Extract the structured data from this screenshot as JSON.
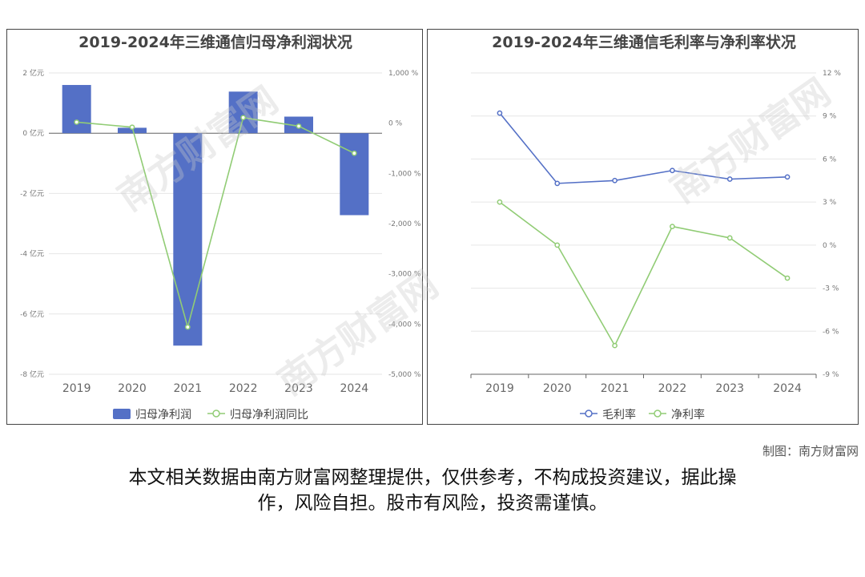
{
  "chart_data": [
    {
      "type": "bar",
      "title": "2019-2024年三维通信归母净利润状况",
      "categories": [
        "2019",
        "2020",
        "2021",
        "2022",
        "2023",
        "2024"
      ],
      "series": [
        {
          "name": "归母净利润",
          "type": "bar",
          "axis": "left",
          "values": [
            1.6,
            0.18,
            -7.05,
            1.38,
            0.55,
            -2.72
          ]
        },
        {
          "name": "归母净利润同比",
          "type": "line",
          "axis": "right",
          "values": [
            20,
            -80,
            -4060,
            110,
            -60,
            -600
          ]
        }
      ],
      "yleft": {
        "ticks": [
          "2 亿元",
          "0 亿元",
          "-2 亿元",
          "-4 亿元",
          "-6 亿元",
          "-8 亿元"
        ],
        "range": [
          -8,
          2
        ]
      },
      "yright": {
        "ticks": [
          "1,000 %",
          "0 %",
          "-1,000 %",
          "-2,000 %",
          "-3,000 %",
          "-4,000 %",
          "-5,000 %"
        ],
        "range": [
          -5000,
          1000
        ]
      },
      "colors": {
        "bar": "#5470c6",
        "line": "#91cc75"
      }
    },
    {
      "type": "line",
      "title": "2019-2024年三维通信毛利率与净利率状况",
      "categories": [
        "2019",
        "2020",
        "2021",
        "2022",
        "2023",
        "2024"
      ],
      "series": [
        {
          "name": "毛利率",
          "values": [
            9.2,
            4.3,
            4.5,
            5.2,
            4.6,
            4.75
          ]
        },
        {
          "name": "净利率",
          "values": [
            3.0,
            0.0,
            -7.0,
            1.3,
            0.5,
            -2.3
          ]
        }
      ],
      "yright": {
        "ticks": [
          "12 %",
          "9 %",
          "6 %",
          "3 %",
          "0 %",
          "-3 %",
          "-6 %",
          "-9 %"
        ],
        "range": [
          -9,
          12
        ]
      },
      "colors": {
        "line1": "#5470c6",
        "line2": "#91cc75"
      }
    }
  ],
  "credit": "制图：南方财富网",
  "disclaimer_line1": "本文相关数据由南方财富网整理提供，仅供参考，不构成投资建议，据此操",
  "disclaimer_line2": "作，风险自担。股市有风险，投资需谨慎。",
  "watermark": {
    "cn": "南方财富网",
    "en": "southmoney.com"
  }
}
